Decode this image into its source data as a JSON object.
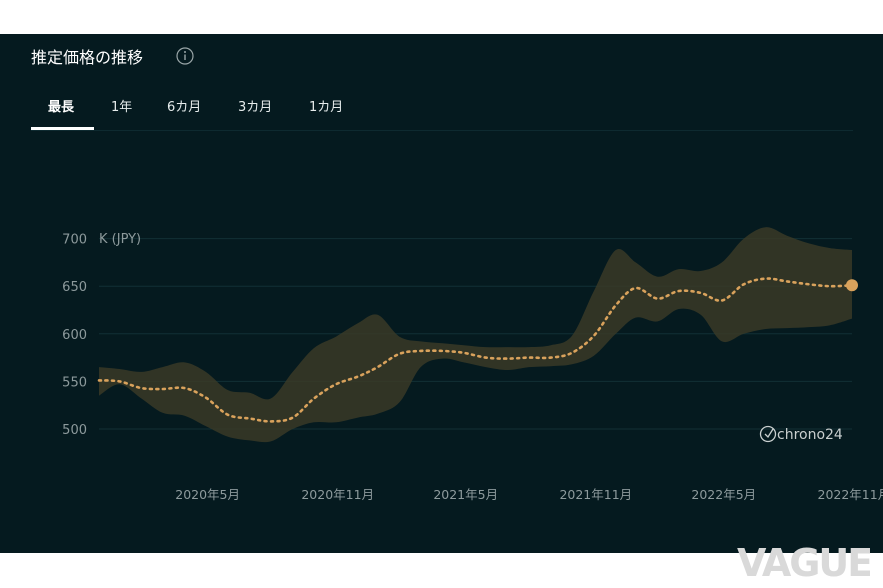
{
  "header": {
    "title": "推定価格の推移",
    "info_icon": "info-icon"
  },
  "tabs": [
    {
      "label": "最長",
      "active": true
    },
    {
      "label": "1年",
      "active": false
    },
    {
      "label": "6カ月",
      "active": false
    },
    {
      "label": "3カ月",
      "active": false
    },
    {
      "label": "1カ月",
      "active": false
    }
  ],
  "colors": {
    "background": "#051a1f",
    "line": "#d9a25c",
    "band": "#3a3a27",
    "axis_text": "#8d9a9c",
    "grid": "#123036"
  },
  "chart_data": {
    "type": "line",
    "title": "",
    "ylabel": "K (JPY)",
    "ylim": [
      475,
      720
    ],
    "yticks": [
      500,
      550,
      600,
      650,
      700
    ],
    "x_tick_labels": [
      "2020年5月",
      "2020年11月",
      "2021年5月",
      "2021年11月",
      "2022年5月",
      "2022年11月"
    ],
    "x_tick_dates": [
      "2020-05-01",
      "2020-11-01",
      "2021-05-01",
      "2021-11-01",
      "2022-05-01",
      "2022-11-01"
    ],
    "xlim": [
      "2020-02-01",
      "2023-01-01"
    ],
    "grid": true,
    "series": [
      {
        "style": "dotted-line",
        "x": [
          "2020-02-01",
          "2020-03-01",
          "2020-04-01",
          "2020-05-01",
          "2020-06-01",
          "2020-07-01",
          "2020-08-01",
          "2020-09-01",
          "2020-10-01",
          "2020-11-01",
          "2020-12-01",
          "2021-01-01",
          "2021-02-01",
          "2021-03-01",
          "2021-04-01",
          "2021-05-01",
          "2021-06-01",
          "2021-07-01",
          "2021-08-01",
          "2021-09-01",
          "2021-10-01",
          "2021-11-01",
          "2021-12-01",
          "2022-01-01",
          "2022-02-01",
          "2022-03-01",
          "2022-04-01",
          "2022-05-01",
          "2022-06-01",
          "2022-07-01",
          "2022-08-01",
          "2022-09-01",
          "2022-10-01",
          "2022-11-01",
          "2022-12-01",
          "2023-01-01"
        ],
        "y": [
          551,
          550,
          543,
          542,
          543,
          533,
          515,
          511,
          508,
          512,
          532,
          547,
          555,
          565,
          579,
          582,
          582,
          580,
          575,
          574,
          575,
          575,
          580,
          598,
          630,
          648,
          637,
          645,
          643,
          635,
          652,
          658,
          655,
          652,
          650,
          651
        ]
      },
      {
        "style": "range-band",
        "x": [
          "2020-02-01",
          "2020-03-01",
          "2020-04-01",
          "2020-05-01",
          "2020-06-01",
          "2020-07-01",
          "2020-08-01",
          "2020-09-01",
          "2020-10-01",
          "2020-11-01",
          "2020-12-01",
          "2021-01-01",
          "2021-02-01",
          "2021-03-01",
          "2021-04-01",
          "2021-05-01",
          "2021-06-01",
          "2021-07-01",
          "2021-08-01",
          "2021-09-01",
          "2021-10-01",
          "2021-11-01",
          "2021-12-01",
          "2022-01-01",
          "2022-02-01",
          "2022-03-01",
          "2022-04-01",
          "2022-05-01",
          "2022-06-01",
          "2022-07-01",
          "2022-08-01",
          "2022-09-01",
          "2022-10-01",
          "2022-11-01",
          "2022-12-01",
          "2023-01-01"
        ],
        "upper": [
          565,
          563,
          560,
          565,
          570,
          560,
          541,
          538,
          532,
          560,
          585,
          597,
          611,
          620,
          597,
          592,
          590,
          588,
          586,
          586,
          586,
          588,
          598,
          645,
          688,
          675,
          660,
          668,
          666,
          675,
          700,
          712,
          703,
          695,
          690,
          688
        ],
        "lower": [
          535,
          547,
          532,
          517,
          514,
          503,
          492,
          488,
          487,
          500,
          507,
          507,
          512,
          516,
          528,
          565,
          574,
          570,
          565,
          562,
          565,
          566,
          568,
          577,
          600,
          617,
          613,
          626,
          620,
          592,
          600,
          605,
          606,
          607,
          609,
          616
        ]
      }
    ],
    "end_marker_value": 651
  },
  "watermarks": {
    "chart_logo": "chrono24",
    "page_logo": "VAGUE"
  }
}
